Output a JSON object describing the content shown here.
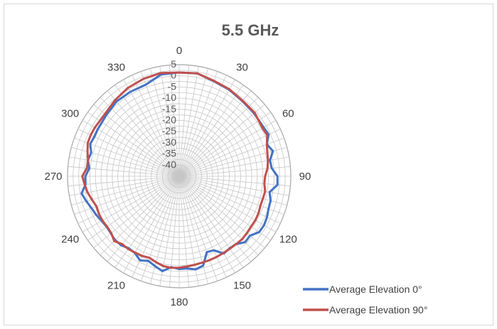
{
  "chart_data": {
    "type": "radar",
    "title": "5.5 GHz",
    "angular_axis": {
      "direction": "clockwise",
      "zero_at": "top",
      "tick_labels": [
        "0",
        "30",
        "60",
        "90",
        "120",
        "150",
        "180",
        "210",
        "240",
        "270",
        "300",
        "330"
      ],
      "tick_values": [
        0,
        30,
        60,
        90,
        120,
        150,
        180,
        210,
        240,
        270,
        300,
        330
      ],
      "spoke_step_deg": 5
    },
    "radial_axis": {
      "range": [
        -45,
        5
      ],
      "tick_values": [
        5,
        0,
        -5,
        -10,
        -15,
        -20,
        -25,
        -30,
        -35,
        -40
      ],
      "tick_labels": [
        "5",
        "0",
        "-5",
        "-10",
        "-15",
        "-20",
        "-25",
        "-30",
        "-35",
        "-40"
      ],
      "ring_step": 2.5
    },
    "grid": true,
    "legend_position": "bottom-right",
    "series": [
      {
        "name": "Average Elevation 0°",
        "color": "#4472c4",
        "theta": [
          0,
          10,
          20,
          30,
          40,
          50,
          60,
          65,
          70,
          75,
          80,
          85,
          90,
          95,
          100,
          105,
          110,
          115,
          120,
          125,
          130,
          135,
          140,
          145,
          150,
          155,
          160,
          165,
          170,
          175,
          180,
          185,
          190,
          195,
          200,
          205,
          210,
          215,
          220,
          225,
          230,
          235,
          240,
          245,
          250,
          255,
          260,
          265,
          270,
          275,
          280,
          285,
          290,
          295,
          300,
          310,
          320,
          330,
          340,
          350
        ],
        "values": [
          1.5,
          1.8,
          0.3,
          -0.2,
          -1.0,
          -1.2,
          -1.3,
          -0.8,
          -3.2,
          -1.5,
          -3.7,
          -3.4,
          -1.0,
          -0.8,
          -3.9,
          -2.6,
          -2.4,
          -1.6,
          -1.1,
          -1.3,
          -3.6,
          -3.2,
          -5.3,
          -5.6,
          -5.0,
          -8.4,
          -8.8,
          -3.5,
          -2.6,
          -3.5,
          -3.4,
          -4.1,
          -1.8,
          -3.3,
          -4.6,
          -3.4,
          -5.3,
          -5.6,
          -4.6,
          -4.4,
          -5.1,
          -5.4,
          -4.9,
          -4.0,
          -3.2,
          -1.9,
          -0.6,
          -2.9,
          -3.0,
          -4.6,
          -3.5,
          -4.2,
          -2.6,
          -3.1,
          -2.9,
          -2.4,
          -1.3,
          -1.3,
          -1.3,
          1.3
        ]
      },
      {
        "name": "Average Elevation 90°",
        "color": "#c0504d",
        "theta": [
          0,
          10,
          20,
          30,
          40,
          50,
          60,
          65,
          70,
          75,
          80,
          85,
          90,
          95,
          100,
          105,
          110,
          115,
          120,
          125,
          130,
          135,
          140,
          145,
          150,
          155,
          160,
          165,
          170,
          175,
          180,
          185,
          190,
          195,
          200,
          205,
          210,
          215,
          220,
          225,
          230,
          235,
          240,
          245,
          250,
          255,
          260,
          265,
          270,
          275,
          280,
          285,
          290,
          295,
          300,
          310,
          320,
          330,
          340,
          350
        ],
        "values": [
          1.5,
          1.8,
          0.5,
          0.0,
          -0.8,
          -0.8,
          -1.9,
          -1.5,
          -3.2,
          -4.1,
          -4.6,
          -5.3,
          -6.5,
          -6.7,
          -5.9,
          -6.2,
          -6.3,
          -5.8,
          -5.6,
          -5.7,
          -5.4,
          -5.1,
          -5.3,
          -5.4,
          -5.3,
          -5.1,
          -5.0,
          -4.9,
          -4.7,
          -4.4,
          -4.0,
          -3.8,
          -4.1,
          -5.1,
          -6.1,
          -5.6,
          -5.5,
          -5.2,
          -5.3,
          -3.9,
          -5.3,
          -5.6,
          -5.3,
          -5.3,
          -5.6,
          -4.5,
          -3.3,
          -2.5,
          -1.6,
          -3.5,
          -3.5,
          -2.5,
          -1.4,
          -1.3,
          -1.4,
          -1.6,
          -0.4,
          0.8,
          1.5,
          2.0
        ]
      }
    ]
  }
}
